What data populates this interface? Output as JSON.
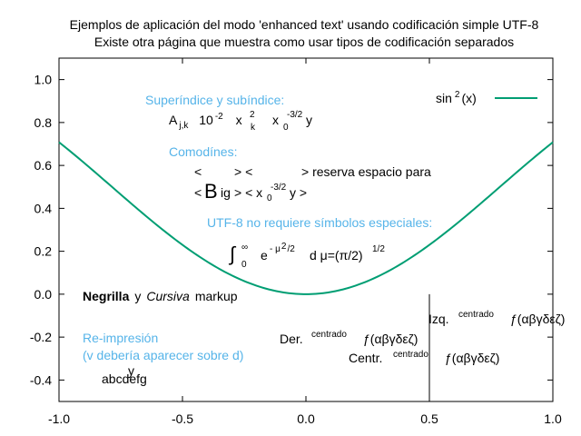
{
  "chart_data": {
    "type": "line",
    "title": "Ejemplos de aplicación del modo 'enhanced text' usando codificación simple UTF-8",
    "subtitle": "Existe otra página que muestra como usar tipos de codificación separados",
    "xlim": [
      -1.0,
      1.0
    ],
    "ylim": [
      -0.5,
      1.1
    ],
    "x_ticks": [
      "-1.0",
      "-0.5",
      "0.0",
      "0.5",
      "1.0"
    ],
    "y_ticks": [
      "1.0",
      "0.8",
      "0.6",
      "0.4",
      "0.2",
      "0.0",
      "-0.2",
      "-0.4"
    ],
    "grid": false,
    "legend_position": "top-right",
    "series": [
      {
        "name": "sin²(x)",
        "color": "#009e73",
        "function": "sin(x)^2",
        "x": [
          -1.0,
          -0.75,
          -0.5,
          -0.25,
          0.0,
          0.25,
          0.5,
          0.75,
          1.0
        ],
        "y": [
          0.708,
          0.465,
          0.23,
          0.061,
          0.0,
          0.061,
          0.23,
          0.465,
          0.708
        ]
      }
    ],
    "vertical_line_x": 0.5
  },
  "legend": {
    "base": "sin",
    "sup": "2",
    "tail": "(x)"
  },
  "annotations": {
    "superscripts_heading": "Superíndice y subíndice:",
    "sub_a": "A",
    "sub_a_idx": "j,k",
    "ten": "10",
    "ten_exp": "-2",
    "xk": "x",
    "xk_sup": "2",
    "xk_sub": "k",
    "x0": "x",
    "x0_sup": "-3/2",
    "x0_sub": "0",
    "y_char": "y",
    "wildcards_heading": "Comodínes:",
    "reserve_left": "<",
    "reserve_mid": "> <",
    "reserve_tail": "> reserva espacio para",
    "big_lt": "<",
    "big_b": "B",
    "big_rest": "ig",
    "big_gt": "> < x",
    "big_sub": "0",
    "big_sup": "-3/2",
    "big_y": "y >",
    "utf8_heading": "UTF-8 no requiere símbolos especiales:",
    "integral": "∫",
    "integral_sup": "∞",
    "integral_sub": "0",
    "integrand": "e",
    "integrand_sup": "- μ",
    "integrand_sup2": "2",
    "integrand_sup3": "/2",
    "integrand_tail": "d μ=(π/2)",
    "integrand_pow": "1/2",
    "bold_word": "Negrilla",
    "y_word": "y",
    "italic_word": "Cursiva",
    "markup_word": "markup",
    "overprint_heading": "Re-impresión",
    "overprint_sub": "(v debería aparecer sobre d)",
    "overprint_base": "abcdefg",
    "overprint_over": "y",
    "right_label": "Der.",
    "center_label": "Centr.",
    "left_label": "Izq.",
    "centered_word": "centrado",
    "greek": "ƒ(αβγδεζ)"
  }
}
